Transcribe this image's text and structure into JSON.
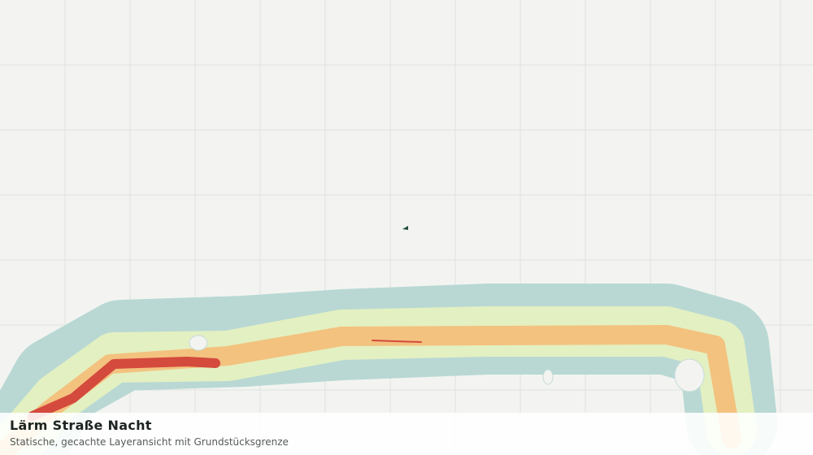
{
  "layer": {
    "title": "Lärm Straße Nacht",
    "subtitle": "Statische, gecachte Layeransicht mit Grundstücksgrenze"
  }
}
